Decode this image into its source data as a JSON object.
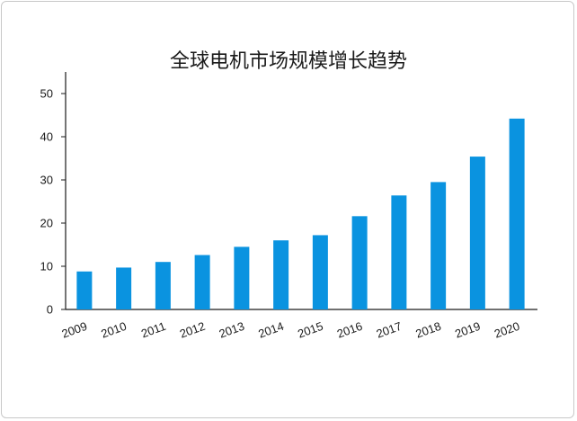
{
  "chart_data": {
    "type": "bar",
    "title": "全球电机市场规模增长趋势",
    "categories": [
      "2009",
      "2010",
      "2011",
      "2012",
      "2013",
      "2014",
      "2015",
      "2016",
      "2017",
      "2018",
      "2019",
      "2020"
    ],
    "values": [
      8.8,
      9.7,
      11.0,
      12.6,
      14.5,
      16.0,
      17.2,
      21.6,
      26.4,
      29.5,
      35.4,
      44.2
    ],
    "ylim": [
      0,
      55
    ],
    "yticks": [
      0,
      10,
      20,
      30,
      40,
      50
    ],
    "xlabel": "",
    "ylabel": "",
    "bar_color": "#0a93e0",
    "grid": false,
    "legend": "none"
  }
}
